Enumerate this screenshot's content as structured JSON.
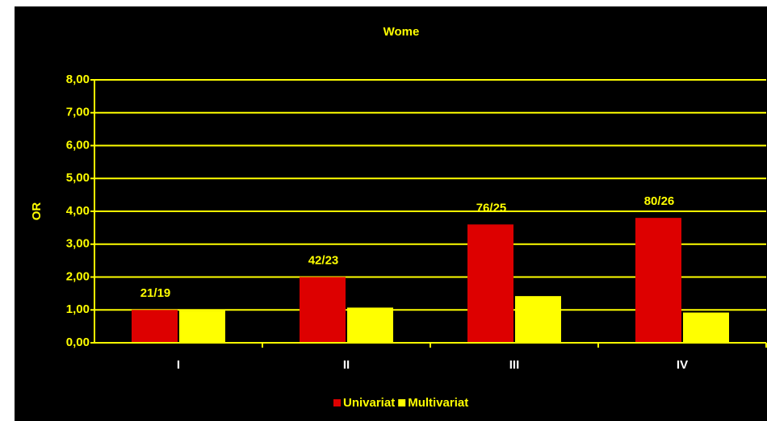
{
  "chart_data": {
    "type": "bar",
    "title": "Wome",
    "y_label": "OR",
    "categories": [
      "I",
      "II",
      "III",
      "IV"
    ],
    "annotations": [
      "21/19",
      "42/23",
      "76/25",
      "80/26"
    ],
    "series": [
      {
        "name": "Univariat",
        "color": "#dd0000",
        "values": [
          1.0,
          2.0,
          3.6,
          3.8
        ]
      },
      {
        "name": "Multivariat",
        "color": "#ffff00",
        "values": [
          0.98,
          1.07,
          1.42,
          0.92
        ]
      }
    ],
    "ylim": [
      0,
      8
    ],
    "yticks": [
      {
        "value": 0,
        "label": "0,00"
      },
      {
        "value": 1,
        "label": "1,00"
      },
      {
        "value": 2,
        "label": "2,00"
      },
      {
        "value": 3,
        "label": "3,00"
      },
      {
        "value": 4,
        "label": "4,00"
      },
      {
        "value": 5,
        "label": "5,00"
      },
      {
        "value": 6,
        "label": "6,00"
      },
      {
        "value": 7,
        "label": "7,00"
      },
      {
        "value": 8,
        "label": "8,00"
      }
    ],
    "grid": true,
    "grid_color": "#ffff00",
    "background": "#000000"
  }
}
